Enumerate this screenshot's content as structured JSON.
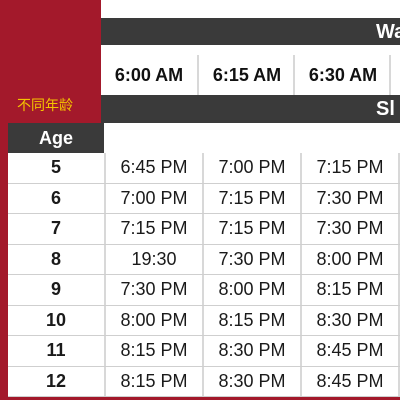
{
  "wake_band": {
    "title": "Wa"
  },
  "sleep_band": {
    "title": "Sl"
  },
  "wake_times": [
    "6:00 AM",
    "6:15 AM",
    "6:30 AM"
  ],
  "chinese_label": "不同年龄",
  "age_header": "Age",
  "rows": [
    {
      "age": "5",
      "times": [
        "6:45 PM",
        "7:00 PM",
        "7:15 PM"
      ]
    },
    {
      "age": "6",
      "times": [
        "7:00 PM",
        "7:15 PM",
        "7:30 PM"
      ]
    },
    {
      "age": "7",
      "times": [
        "7:15 PM",
        "7:15 PM",
        "7:30 PM"
      ]
    },
    {
      "age": "8",
      "times": [
        "19:30",
        "7:30 PM",
        "8:00 PM"
      ]
    },
    {
      "age": "9",
      "times": [
        "7:30 PM",
        "8:00 PM",
        "8:15 PM"
      ]
    },
    {
      "age": "10",
      "times": [
        "8:00 PM",
        "8:15 PM",
        "8:30 PM"
      ]
    },
    {
      "age": "11",
      "times": [
        "8:15 PM",
        "8:30 PM",
        "8:45 PM"
      ]
    },
    {
      "age": "12",
      "times": [
        "8:15 PM",
        "8:30 PM",
        "8:45 PM"
      ]
    }
  ],
  "colors": {
    "background": "#a3192b",
    "header_band": "#3a3a3a",
    "chinese_text": "#f4c300"
  }
}
